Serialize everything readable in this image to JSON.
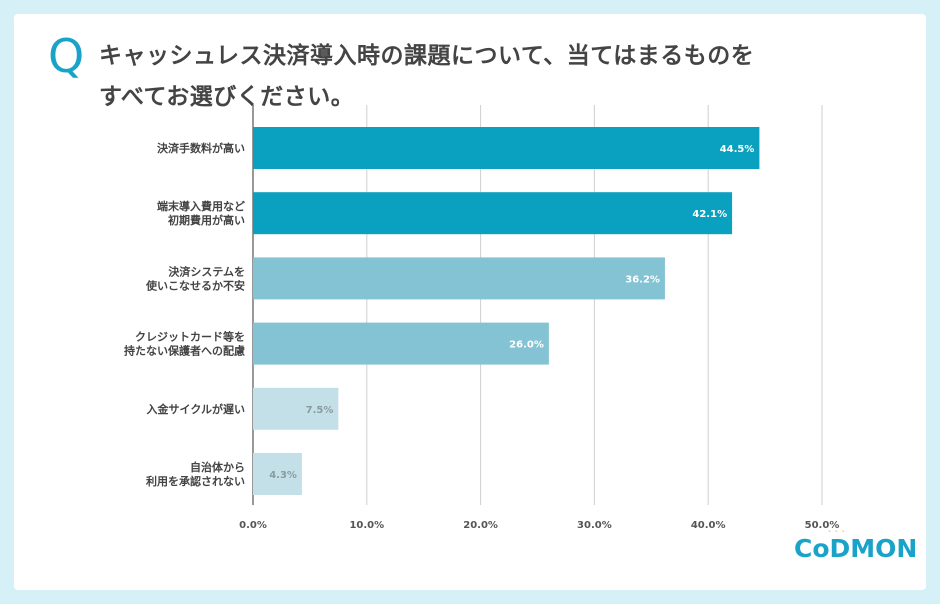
{
  "question": {
    "mark": "Q",
    "line1": "キャッシュレス決済導入時の課題について、当てはまるものを",
    "line2": "すべてお選びください。"
  },
  "logo": {
    "text": "CoDMON",
    "icon": "sparkle-icon"
  },
  "colors": {
    "background": "#d6f0f8",
    "accent": "#1aa3c8",
    "bar_high": "#0aa0bf",
    "bar_mid": "#84c3d4",
    "bar_low": "#c3e0e9",
    "grid": "#cfcfcf",
    "label_dark": "#444444",
    "value_on_low": "#8a9aa0"
  },
  "chart_data": {
    "type": "bar",
    "orientation": "horizontal",
    "categories": [
      [
        "決済手数料が高い"
      ],
      [
        "端末導入費用など",
        "初期費用が高い"
      ],
      [
        "決済システムを",
        "使いこなせるか不安"
      ],
      [
        "クレジットカード等を",
        "持たない保護者への配慮"
      ],
      [
        "入金サイクルが遅い"
      ],
      [
        "自治体から",
        "利用を承認されない"
      ]
    ],
    "values": [
      44.5,
      42.1,
      36.2,
      26.0,
      7.5,
      4.3
    ],
    "value_labels": [
      "44.5%",
      "42.1%",
      "36.2%",
      "26.0%",
      "7.5%",
      "4.3%"
    ],
    "tier": [
      "high",
      "high",
      "mid",
      "mid",
      "low",
      "low"
    ],
    "xlim": [
      0,
      50
    ],
    "xticks": [
      0,
      10,
      20,
      30,
      40,
      50
    ],
    "xtick_labels": [
      "0.0%",
      "10.0%",
      "20.0%",
      "30.0%",
      "40.0%",
      "50.0%"
    ],
    "grid": true,
    "title": "",
    "xlabel": "",
    "ylabel": ""
  }
}
